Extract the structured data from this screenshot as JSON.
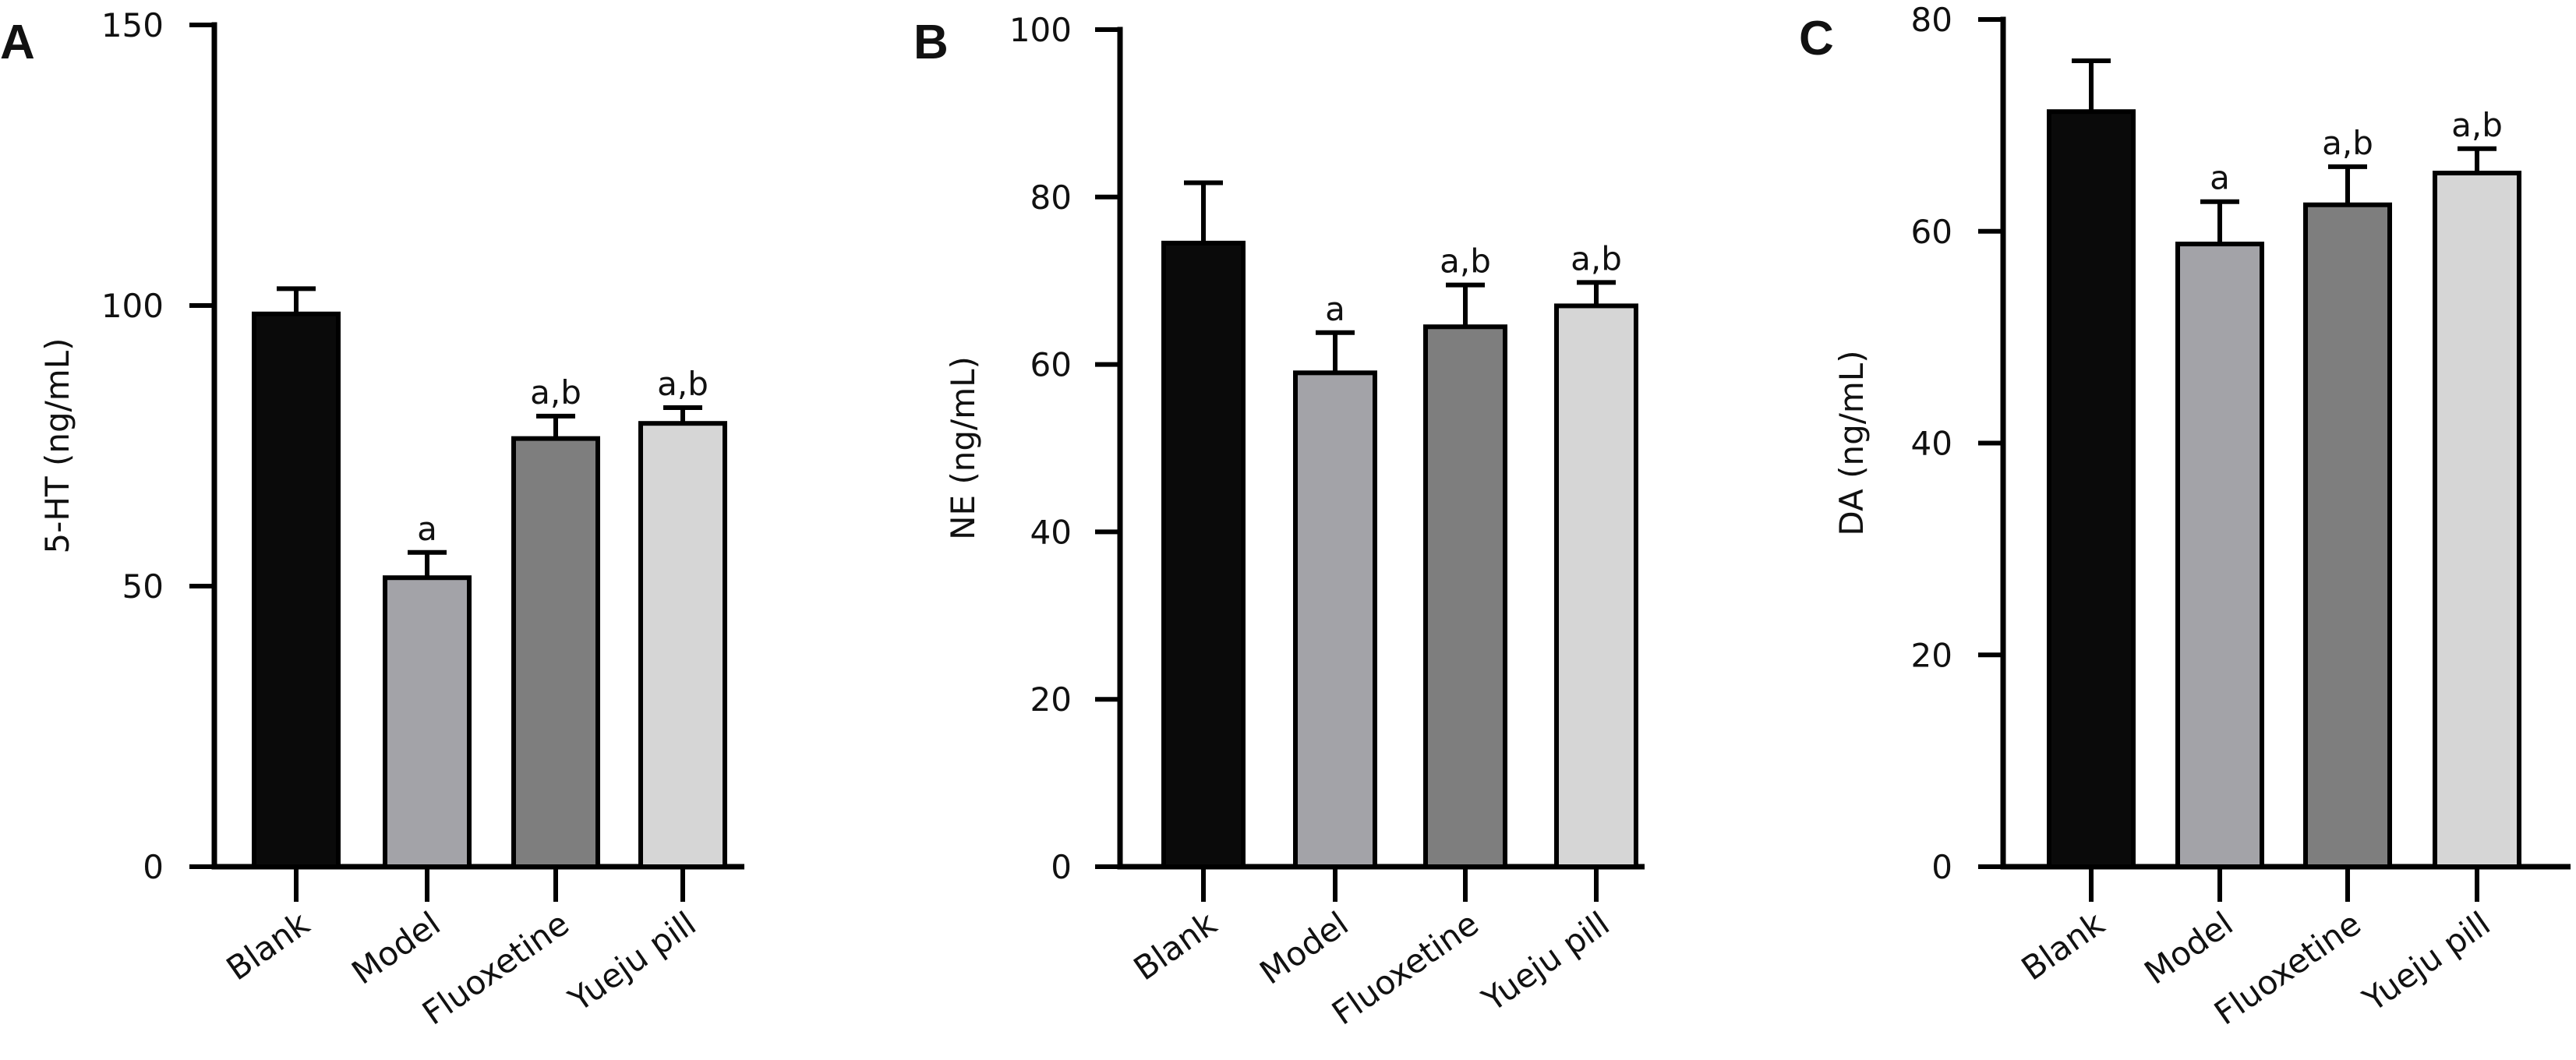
{
  "chart_data": [
    {
      "type": "bar",
      "panel_label": "A",
      "ylabel": "5-HT (ng/mL)",
      "xlabel": "",
      "ylim": [
        0,
        150
      ],
      "yticks": [
        0,
        50,
        100,
        150
      ],
      "categories": [
        "Blank",
        "Model",
        "Fluoxetine",
        "Yueju pill"
      ],
      "values": [
        98.5,
        51.5,
        76.3,
        79.0
      ],
      "errors": [
        4.5,
        4.5,
        4.0,
        2.8
      ],
      "annotations": [
        "",
        "a",
        "a,b",
        "a,b"
      ],
      "colors": [
        "#0a0a0a",
        "#a3a3a8",
        "#7e7e7e",
        "#d6d6d6"
      ]
    },
    {
      "type": "bar",
      "panel_label": "B",
      "ylabel": "NE (ng/mL)",
      "xlabel": "",
      "ylim": [
        0,
        100
      ],
      "yticks": [
        0,
        20,
        40,
        60,
        80,
        100
      ],
      "categories": [
        "Blank",
        "Model",
        "Fluoxetine",
        "Yueju pill"
      ],
      "values": [
        74.5,
        59.0,
        64.5,
        67.0
      ],
      "errors": [
        7.2,
        4.8,
        5.0,
        2.8
      ],
      "annotations": [
        "",
        "a",
        "a,b",
        "a,b"
      ],
      "colors": [
        "#0a0a0a",
        "#a3a3a8",
        "#7e7e7e",
        "#d6d6d6"
      ]
    },
    {
      "type": "bar",
      "panel_label": "C",
      "ylabel": "DA (ng/mL)",
      "xlabel": "",
      "ylim": [
        0,
        80
      ],
      "yticks": [
        0,
        20,
        40,
        60,
        80
      ],
      "categories": [
        "Blank",
        "Model",
        "Fluoxetine",
        "Yueju pill"
      ],
      "values": [
        71.3,
        58.8,
        62.5,
        65.5
      ],
      "errors": [
        4.8,
        4.0,
        3.6,
        2.3
      ],
      "annotations": [
        "",
        "a",
        "a,b",
        "a,b"
      ],
      "colors": [
        "#0a0a0a",
        "#a3a3a8",
        "#7e7e7e",
        "#d6d6d6"
      ]
    }
  ]
}
